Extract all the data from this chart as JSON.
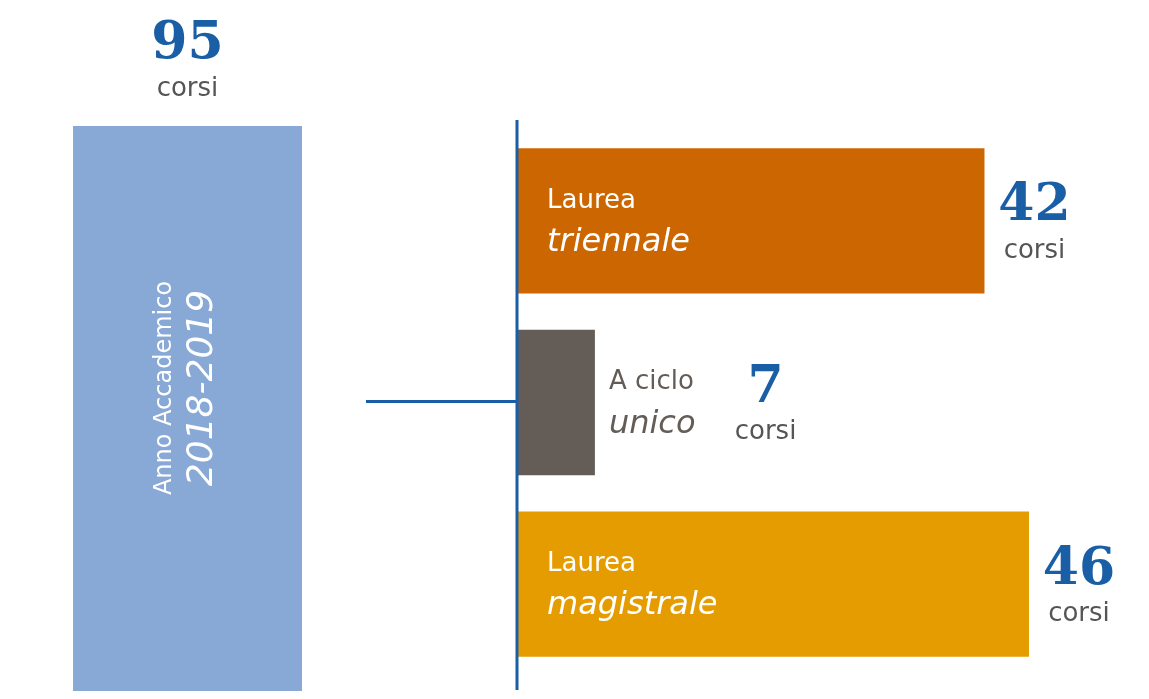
{
  "chart_data": {
    "type": "bar",
    "orientation": "horizontal",
    "title": "Anno Accademico 2018-2019",
    "annotations": [
      "95 corsi"
    ],
    "categories": [
      "Laurea triennale",
      "A ciclo unico",
      "Laurea magistrale"
    ],
    "values": [
      42,
      7,
      46
    ],
    "colors": [
      "#cc6600",
      "#645d57",
      "#e59c00"
    ],
    "value_labels": [
      "42 corsi",
      "7 corsi",
      "46 corsi"
    ],
    "legend": false
  }
}
